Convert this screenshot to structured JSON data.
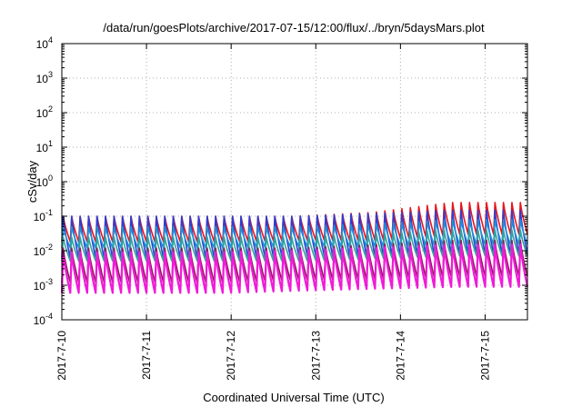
{
  "chart_data": {
    "type": "line",
    "title": "/data/run/goesPlots/archive/2017-07-15/12:00/flux/../bryn/5daysMars.plot",
    "xlabel": "Coordinated Universal Time (UTC)",
    "ylabel": "cSv/day",
    "yscale": "log",
    "ylim": [
      0.0001,
      10000
    ],
    "yticks": [
      {
        "base": "10",
        "exp": "-4"
      },
      {
        "base": "10",
        "exp": "-3"
      },
      {
        "base": "10",
        "exp": "-2"
      },
      {
        "base": "10",
        "exp": "-1"
      },
      {
        "base": "10",
        "exp": "0"
      },
      {
        "base": "10",
        "exp": "1"
      },
      {
        "base": "10",
        "exp": "2"
      },
      {
        "base": "10",
        "exp": "3"
      },
      {
        "base": "10",
        "exp": "4"
      }
    ],
    "x_range_days": [
      0,
      5.5
    ],
    "xticks": [
      {
        "label": "2017-7-10",
        "day": 0
      },
      {
        "label": "2017-7-11",
        "day": 1
      },
      {
        "label": "2017-7-12",
        "day": 2
      },
      {
        "label": "2017-7-13",
        "day": 3
      },
      {
        "label": "2017-7-14",
        "day": 4
      },
      {
        "label": "2017-7-15",
        "day": 5
      }
    ],
    "grid": true,
    "legend": "none",
    "period_days": 0.1,
    "series": [
      {
        "color": "#e8141c",
        "peaks": [
          0.1,
          0.1,
          0.1,
          0.1,
          0.13,
          0.25,
          0.25
        ],
        "troughs": [
          0.018,
          0.018,
          0.018,
          0.02,
          0.02,
          0.03,
          0.03
        ]
      },
      {
        "color": "#2a3fd6",
        "peaks": [
          0.1,
          0.1,
          0.1,
          0.1,
          0.12,
          0.15,
          0.15
        ],
        "troughs": [
          0.006,
          0.006,
          0.006,
          0.007,
          0.007,
          0.008,
          0.008
        ]
      },
      {
        "color": "#1e90d8",
        "peaks": [
          0.05,
          0.05,
          0.05,
          0.05,
          0.06,
          0.08,
          0.08
        ],
        "troughs": [
          0.012,
          0.012,
          0.012,
          0.013,
          0.013,
          0.015,
          0.015
        ]
      },
      {
        "color": "#33a39a",
        "peaks": [
          0.025,
          0.025,
          0.025,
          0.025,
          0.03,
          0.04,
          0.04
        ],
        "troughs": [
          0.005,
          0.005,
          0.005,
          0.005,
          0.006,
          0.007,
          0.007
        ]
      },
      {
        "color": "#8b1a5a",
        "peaks": [
          0.012,
          0.012,
          0.012,
          0.012,
          0.015,
          0.02,
          0.02
        ],
        "troughs": [
          0.0012,
          0.0012,
          0.0012,
          0.0014,
          0.0015,
          0.0018,
          0.0018
        ]
      },
      {
        "color": "#f01bd8",
        "peaks": [
          0.009,
          0.009,
          0.009,
          0.01,
          0.012,
          0.015,
          0.015
        ],
        "troughs": [
          0.0006,
          0.0006,
          0.0006,
          0.0007,
          0.0008,
          0.0009,
          0.0009
        ]
      }
    ]
  }
}
